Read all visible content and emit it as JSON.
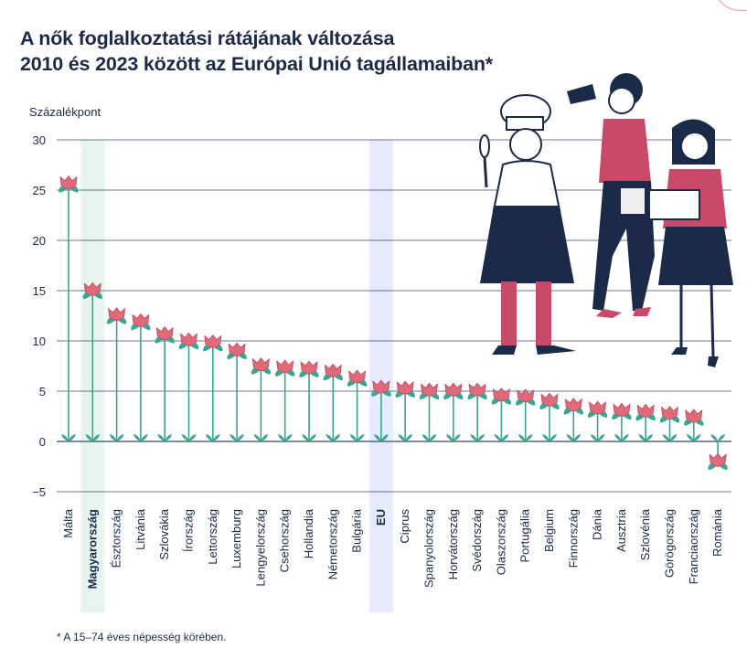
{
  "header": {
    "title_line1": "A nők foglalkoztatási rátájának változása",
    "title_line2": "2010 és 2023 között az Európai Unió tagállamaiban*"
  },
  "footnote": "* A 15–74 éves népesség körében.",
  "colors": {
    "navy": "#1a2a48",
    "stem": "#3aa592",
    "flower": "#e06a7a",
    "highlight_hu": "#e6f6ef",
    "highlight_eu": "#e6ebff",
    "grid": "#1a2a48",
    "pink": "#c94a68"
  },
  "illustration": {
    "description_icons": [
      "chef-icon",
      "hairdresser-icon",
      "office-worker-icon"
    ]
  },
  "chart_data": {
    "type": "bar",
    "ylabel": "Százalékpont",
    "ylim": [
      -5,
      30
    ],
    "yticks": [
      -5,
      0,
      5,
      10,
      15,
      20,
      25,
      30
    ],
    "grid": true,
    "categories": [
      "Málta",
      "Magyarország",
      "Észtország",
      "Litvánia",
      "Szlovákia",
      "Írország",
      "Lettország",
      "Luxemburg",
      "Lengyelország",
      "Csehország",
      "Hollandia",
      "Németország",
      "Bulgária",
      "EU",
      "Ciprus",
      "Spanyolország",
      "Horvátország",
      "Svédország",
      "Olaszország",
      "Portugália",
      "Belgium",
      "Finnország",
      "Dánia",
      "Ausztria",
      "Szlovénia",
      "Görögország",
      "Franciaország",
      "Románia"
    ],
    "values": [
      25.3,
      14.7,
      12.2,
      11.6,
      10.3,
      9.7,
      9.5,
      8.7,
      7.2,
      7.0,
      6.9,
      6.6,
      6.0,
      5.0,
      4.9,
      4.7,
      4.7,
      4.7,
      4.2,
      4.1,
      3.7,
      3.2,
      2.9,
      2.7,
      2.6,
      2.4,
      2.1,
      -2.3
    ],
    "highlighted": [
      "Magyarország",
      "EU"
    ]
  }
}
